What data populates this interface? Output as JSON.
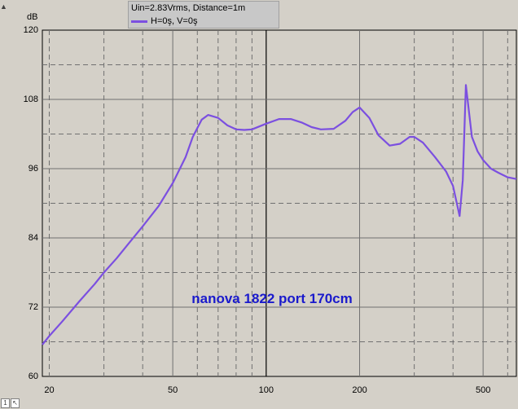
{
  "chart_data": {
    "type": "line",
    "ylabel": "dB",
    "xscale": "log",
    "xlim": [
      19,
      640
    ],
    "ylim": [
      60,
      120
    ],
    "yticks": [
      60,
      72,
      84,
      96,
      108,
      120
    ],
    "xticks": [
      20,
      50,
      100,
      200,
      500
    ],
    "xtick_labels": [
      "20",
      "50",
      "100",
      "200",
      "500"
    ],
    "grid": true,
    "legend_position": "top",
    "legend_header": "Uin=2.83Vrms, Distance=1m",
    "annotation": "nanova 1822 port 170cm",
    "series": [
      {
        "name": "H=0ş, V=0ş",
        "color": "#7b4fe0",
        "x": [
          19,
          20,
          22,
          25,
          28,
          30,
          33,
          36,
          40,
          45,
          50,
          55,
          58,
          62,
          65,
          70,
          75,
          80,
          85,
          90,
          100,
          110,
          120,
          130,
          140,
          150,
          165,
          180,
          190,
          200,
          215,
          230,
          250,
          270,
          290,
          300,
          320,
          350,
          380,
          400,
          420,
          430,
          440,
          450,
          460,
          480,
          500,
          530,
          560,
          600,
          640
        ],
        "y": [
          65.5,
          67,
          69.5,
          73,
          76,
          78,
          80.5,
          83,
          86,
          89.5,
          93.5,
          98,
          101.5,
          104.5,
          105.3,
          104.8,
          103.5,
          102.8,
          102.7,
          102.8,
          103.8,
          104.6,
          104.6,
          104,
          103.2,
          102.8,
          102.9,
          104.3,
          105.8,
          106.6,
          104.8,
          101.8,
          100,
          100.3,
          101.5,
          101.5,
          100.5,
          98,
          95.5,
          93,
          87.8,
          94,
          110.5,
          106,
          101.5,
          99,
          97.5,
          96,
          95.3,
          94.5,
          94.2
        ]
      }
    ]
  }
}
